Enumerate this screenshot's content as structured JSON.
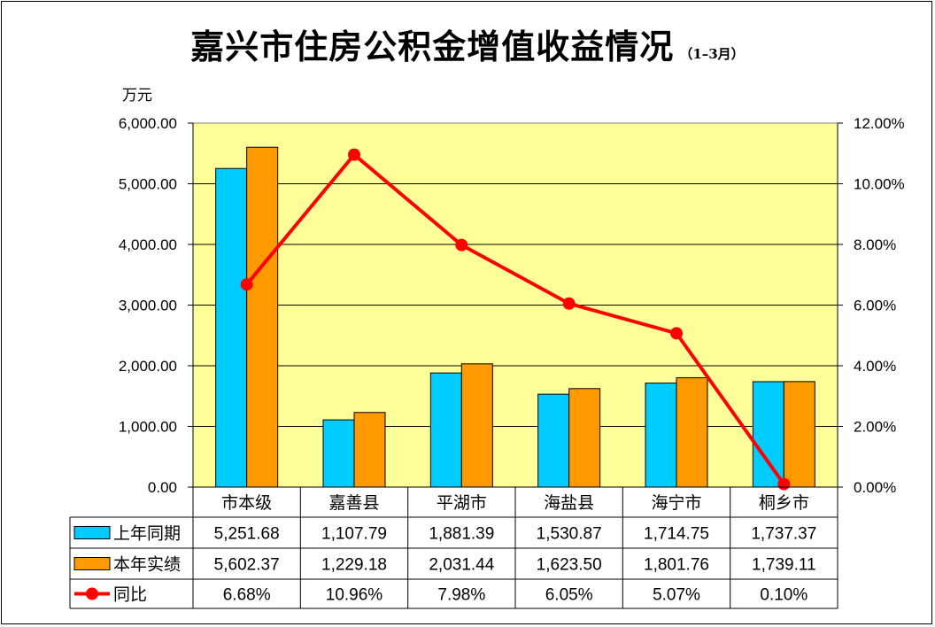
{
  "title": "嘉兴市住房公积金增值收益情况",
  "subtitle": "（1–3月）",
  "unit_label": "万元",
  "colors": {
    "plot_bg": "#FFFF99",
    "series_prev": "#00CCFF",
    "series_curr": "#FF9900",
    "series_ratio": "#FF0000"
  },
  "chart_data": {
    "type": "bar",
    "categories": [
      "市本级",
      "嘉善县",
      "平湖市",
      "海盐县",
      "海宁市",
      "桐乡市"
    ],
    "series": [
      {
        "name": "上年同期",
        "type": "bar",
        "axis": "left",
        "values": [
          5251.68,
          1107.79,
          1881.39,
          1530.87,
          1714.75,
          1737.37
        ]
      },
      {
        "name": "本年实绩",
        "type": "bar",
        "axis": "left",
        "values": [
          5602.37,
          1229.18,
          2031.44,
          1623.5,
          1801.76,
          1739.11
        ]
      },
      {
        "name": "同比",
        "type": "line",
        "axis": "right",
        "values": [
          6.68,
          10.96,
          7.98,
          6.05,
          5.07,
          0.1
        ]
      }
    ],
    "left_axis": {
      "min": 0,
      "max": 6000,
      "ticks": [
        "0.00",
        "1,000.00",
        "2,000.00",
        "3,000.00",
        "4,000.00",
        "5,000.00",
        "6,000.00"
      ]
    },
    "right_axis": {
      "min": 0,
      "max": 12,
      "ticks": [
        "0.00%",
        "2.00%",
        "4.00%",
        "6.00%",
        "8.00%",
        "10.00%",
        "12.00%"
      ]
    },
    "grid": true,
    "legend": "data-table",
    "data_table": [
      [
        "5,251.68",
        "1,107.79",
        "1,881.39",
        "1,530.87",
        "1,714.75",
        "1,737.37"
      ],
      [
        "5,602.37",
        "1,229.18",
        "2,031.44",
        "1,623.50",
        "1,801.76",
        "1,739.11"
      ],
      [
        "6.68%",
        "10.96%",
        "7.98%",
        "6.05%",
        "5.07%",
        "0.10%"
      ]
    ]
  }
}
